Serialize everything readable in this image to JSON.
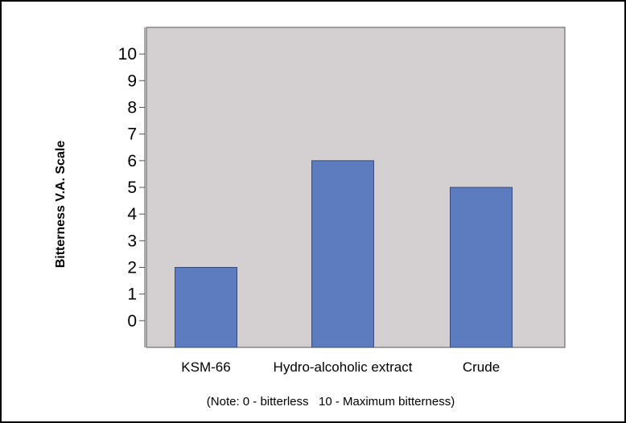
{
  "chart_data": {
    "type": "bar",
    "categories": [
      "KSM-66",
      "Hydro-alcoholic extract",
      "Crude"
    ],
    "values": [
      2,
      6,
      5
    ],
    "title": "",
    "xlabel": "",
    "ylabel": "Bitterness V.A. Scale",
    "yticks": [
      "0",
      "1",
      "2",
      "3",
      "4",
      "5",
      "6",
      "7",
      "8",
      "9",
      "10"
    ],
    "ylim": [
      -1,
      11
    ],
    "grid": false,
    "note": "(Note: 0 - bitterless   10 - Maximum bitterness)",
    "colors": {
      "bar": "#5c7cbf",
      "plot_background": "#d4d0d2"
    }
  }
}
